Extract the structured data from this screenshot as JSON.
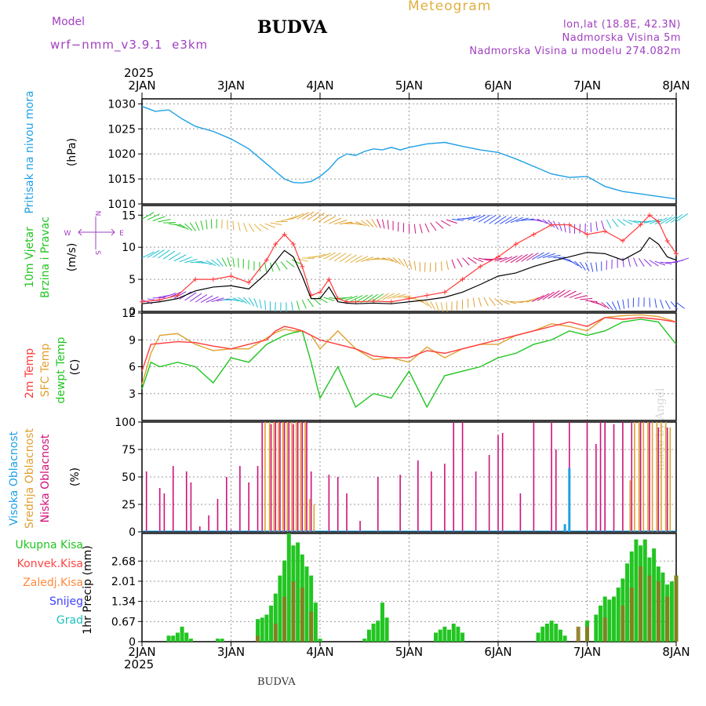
{
  "header": {
    "model_label": "Model",
    "model_name": "wrf−nmm_v3.9.1  e3km",
    "title": "BUDVA",
    "meteogram": "Meteogram",
    "lonlat": "lon,lat (18.8E, 42.3N)",
    "altitude": "Nadmorska Visina 5m",
    "model_altitude": "Nadmorska Visina u modelu 274.082m",
    "year_top": "2025",
    "year_bottom": "2025",
    "footer_station": "BUDVA",
    "watermark": "made by Angel"
  },
  "colors": {
    "pressure": "#1ea0e6",
    "wind_black": "#000000",
    "wind_gust": "#ff3b3b",
    "t2m": "#ff3b3b",
    "sfc": "#e0a030",
    "dew": "#22c522",
    "cloud_high": "#1ea0e6",
    "cloud_mid": "#e0a030",
    "cloud_low": "#d0107a",
    "precip_total": "#22c522",
    "precip_conv": "#ff4444",
    "precip_frozen": "#ff8a3c",
    "precip_snow": "#4040ff",
    "precip_graupel": "#20c0c0",
    "model_text": "#a040c0"
  },
  "chart_data": [
    {
      "type": "line",
      "id": "pressure",
      "ylabel": "(hPa)",
      "side_label": "Pritisak na nivou mora",
      "ylim": [
        1010,
        1031
      ],
      "yticks": [
        1010,
        1015,
        1020,
        1025,
        1030
      ],
      "x_days": [
        2,
        3,
        4,
        5,
        6,
        7,
        8
      ],
      "x_tick_labels": [
        "2JAN",
        "3JAN",
        "4JAN",
        "5JAN",
        "6JAN",
        "7JAN",
        "8JAN"
      ],
      "series": [
        {
          "name": "MSLP",
          "x": [
            0,
            0.15,
            0.3,
            0.45,
            0.6,
            0.8,
            1.0,
            1.2,
            1.4,
            1.5,
            1.6,
            1.7,
            1.8,
            1.9,
            2.0,
            2.1,
            2.2,
            2.3,
            2.4,
            2.5,
            2.6,
            2.7,
            2.8,
            2.9,
            3.0,
            3.2,
            3.4,
            3.6,
            3.8,
            4.0,
            4.2,
            4.4,
            4.6,
            4.8,
            5.0,
            5.2,
            5.4,
            5.6,
            5.8,
            6.0
          ],
          "values": [
            1029.5,
            1028.5,
            1028.8,
            1027.0,
            1025.5,
            1024.5,
            1023.0,
            1021.0,
            1018.0,
            1016.5,
            1015.0,
            1014.3,
            1014.2,
            1014.5,
            1015.5,
            1017.0,
            1019.0,
            1020.0,
            1019.7,
            1020.5,
            1021.0,
            1020.8,
            1021.3,
            1020.8,
            1021.3,
            1022.0,
            1022.3,
            1021.5,
            1020.8,
            1020.3,
            1019.0,
            1017.5,
            1016.0,
            1015.3,
            1015.5,
            1013.5,
            1012.5,
            1012.0,
            1011.5,
            1011.0
          ]
        }
      ]
    },
    {
      "type": "line",
      "id": "wind",
      "ylabel": "(m/s)",
      "side_label_1": "10m Vjetar",
      "side_label_2": "Brzina i Pravac",
      "ylim": [
        0,
        16.5
      ],
      "yticks": [
        0,
        5,
        10,
        15
      ],
      "compass": {
        "n": "N",
        "s": "S",
        "e": "E",
        "w": "W"
      },
      "series": [
        {
          "name": "Wind speed",
          "x": [
            0,
            0.2,
            0.4,
            0.6,
            0.8,
            1.0,
            1.2,
            1.4,
            1.5,
            1.6,
            1.7,
            1.8,
            1.9,
            2.0,
            2.1,
            2.2,
            2.3,
            2.4,
            2.6,
            2.8,
            3.0,
            3.2,
            3.4,
            3.6,
            3.8,
            4.0,
            4.2,
            4.4,
            4.6,
            4.8,
            5.0,
            5.2,
            5.4,
            5.6,
            5.7,
            5.8,
            5.9,
            6.0
          ],
          "values": [
            1.2,
            1.5,
            2.0,
            3.2,
            3.8,
            4.0,
            3.5,
            6.0,
            7.8,
            9.5,
            8.5,
            5.5,
            2.0,
            2.0,
            3.8,
            1.5,
            1.3,
            1.2,
            1.3,
            1.2,
            1.5,
            1.8,
            2.2,
            3.0,
            4.2,
            5.5,
            6.0,
            7.0,
            7.8,
            8.5,
            9.2,
            9.0,
            8.0,
            9.5,
            11.5,
            10.5,
            8.5,
            8.0
          ]
        },
        {
          "name": "Gust",
          "x": [
            0,
            0.2,
            0.4,
            0.6,
            0.8,
            1.0,
            1.2,
            1.4,
            1.5,
            1.6,
            1.7,
            1.8,
            1.9,
            2.0,
            2.1,
            2.2,
            2.3,
            2.4,
            2.6,
            2.8,
            3.0,
            3.2,
            3.4,
            3.6,
            3.8,
            4.0,
            4.2,
            4.4,
            4.6,
            4.8,
            5.0,
            5.2,
            5.4,
            5.6,
            5.7,
            5.8,
            5.9,
            6.0
          ],
          "values": [
            1.5,
            1.8,
            2.5,
            5.0,
            5.0,
            5.5,
            4.5,
            8.0,
            10.5,
            12.0,
            10.5,
            7.0,
            2.5,
            3.0,
            5.0,
            2.0,
            1.5,
            1.5,
            1.6,
            1.5,
            2.0,
            2.5,
            3.0,
            5.0,
            7.0,
            8.5,
            10.5,
            12.0,
            13.5,
            13.5,
            12.0,
            12.5,
            11.0,
            13.5,
            15.0,
            14.0,
            11.0,
            9.0
          ]
        }
      ]
    },
    {
      "type": "line",
      "id": "temperature",
      "ylabel": "(C)",
      "side_label_1": "2m Temp",
      "side_label_2": "SFC Temp",
      "side_label_3": "dewpt Temp",
      "ylim": [
        0,
        12
      ],
      "yticks": [
        3,
        6,
        9,
        12
      ],
      "series": [
        {
          "name": "2m Temp",
          "x": [
            0,
            0.1,
            0.2,
            0.4,
            0.6,
            0.8,
            1.0,
            1.2,
            1.4,
            1.5,
            1.6,
            1.7,
            1.8,
            1.9,
            2.0,
            2.2,
            2.4,
            2.6,
            2.8,
            3.0,
            3.2,
            3.4,
            3.6,
            3.8,
            4.0,
            4.2,
            4.4,
            4.6,
            4.8,
            5.0,
            5.2,
            5.4,
            5.6,
            5.8,
            6.0
          ],
          "values": [
            5.5,
            8.5,
            8.6,
            8.8,
            8.7,
            8.3,
            8.0,
            8.5,
            9.0,
            10.0,
            10.5,
            10.3,
            10.0,
            9.5,
            9.0,
            8.5,
            8.0,
            7.2,
            7.0,
            7.0,
            7.8,
            7.5,
            8.0,
            8.5,
            9.0,
            9.5,
            10.0,
            10.5,
            11.0,
            10.5,
            11.5,
            11.3,
            11.5,
            11.3,
            11.0
          ]
        },
        {
          "name": "SFC Temp",
          "x": [
            0,
            0.1,
            0.2,
            0.4,
            0.6,
            0.8,
            1.0,
            1.2,
            1.4,
            1.5,
            1.6,
            1.7,
            1.8,
            1.9,
            2.0,
            2.2,
            2.4,
            2.6,
            2.8,
            3.0,
            3.2,
            3.4,
            3.6,
            3.8,
            4.0,
            4.2,
            4.4,
            4.6,
            4.8,
            5.0,
            5.2,
            5.4,
            5.6,
            5.8,
            6.0
          ],
          "values": [
            4.0,
            7.5,
            9.5,
            9.7,
            8.5,
            7.8,
            8.0,
            8.0,
            9.2,
            9.8,
            10.2,
            10.0,
            10.0,
            9.5,
            8.0,
            10.0,
            8.0,
            6.8,
            7.0,
            6.5,
            8.2,
            7.0,
            8.0,
            8.5,
            8.5,
            9.5,
            10.0,
            10.8,
            10.5,
            10.0,
            11.5,
            11.7,
            11.8,
            11.6,
            11.0
          ]
        },
        {
          "name": "dewpt Temp",
          "x": [
            0,
            0.1,
            0.2,
            0.4,
            0.6,
            0.8,
            1.0,
            1.2,
            1.4,
            1.5,
            1.6,
            1.7,
            1.8,
            1.9,
            2.0,
            2.2,
            2.4,
            2.6,
            2.8,
            3.0,
            3.2,
            3.4,
            3.6,
            3.8,
            4.0,
            4.2,
            4.4,
            4.6,
            4.8,
            5.0,
            5.2,
            5.4,
            5.6,
            5.8,
            6.0
          ],
          "values": [
            3.5,
            6.5,
            6.0,
            6.5,
            6.0,
            4.2,
            7.0,
            6.5,
            8.5,
            9.0,
            9.5,
            9.8,
            10.0,
            6.5,
            2.5,
            6.0,
            1.5,
            3.0,
            2.5,
            5.5,
            1.5,
            5.0,
            5.5,
            6.0,
            7.0,
            7.5,
            8.5,
            9.0,
            10.0,
            9.5,
            10.0,
            11.0,
            11.3,
            11.0,
            8.5
          ]
        }
      ]
    },
    {
      "type": "bar",
      "id": "clouds",
      "ylabel": "(%)",
      "side_label_1": "Visoka Oblacnost",
      "side_label_2": "Srednja Oblacnost",
      "side_label_3": "Niska Oblacnost",
      "ylim": [
        0,
        100
      ],
      "yticks": [
        0,
        25,
        50,
        75,
        100
      ],
      "series": [
        {
          "name": "Niska",
          "x": [
            0.05,
            0.2,
            0.25,
            0.35,
            0.5,
            0.55,
            0.65,
            0.75,
            0.85,
            0.95,
            1.0,
            1.1,
            1.2,
            1.3,
            1.35,
            1.45,
            1.5,
            1.55,
            1.6,
            1.65,
            1.7,
            1.75,
            1.8,
            1.85,
            1.9,
            2.1,
            2.2,
            2.3,
            2.45,
            2.65,
            2.9,
            3.1,
            3.25,
            3.4,
            3.5,
            3.6,
            3.75,
            3.9,
            4.0,
            4.05,
            4.25,
            4.4,
            4.6,
            4.65,
            4.8,
            5.0,
            5.1,
            5.15,
            5.2,
            5.3,
            5.4,
            5.5,
            5.6,
            5.7,
            5.8,
            5.9
          ],
          "values": [
            55,
            40,
            35,
            60,
            55,
            45,
            5,
            15,
            30,
            50,
            2,
            60,
            45,
            60,
            100,
            98,
            100,
            100,
            100,
            100,
            98,
            100,
            100,
            100,
            55,
            52,
            50,
            35,
            10,
            50,
            52,
            65,
            55,
            62,
            100,
            100,
            55,
            70,
            88,
            90,
            35,
            100,
            100,
            75,
            100,
            100,
            80,
            100,
            100,
            98,
            100,
            100,
            100,
            100,
            95,
            95
          ]
        },
        {
          "name": "Srednja",
          "x": [
            1.4,
            1.45,
            1.5,
            1.55,
            1.6,
            1.65,
            1.7,
            1.75,
            1.8,
            1.85,
            1.9,
            1.95,
            5.5,
            5.55,
            5.6,
            5.65,
            5.7,
            5.75,
            5.8,
            5.85,
            5.9,
            5.95
          ],
          "values": [
            100,
            100,
            100,
            100,
            100,
            100,
            100,
            100,
            100,
            100,
            30,
            25,
            47,
            100,
            100,
            100,
            100,
            100,
            100,
            100,
            100,
            95
          ]
        },
        {
          "name": "Visoka",
          "x": [
            4.75,
            4.8
          ],
          "values": [
            7,
            58
          ]
        }
      ]
    },
    {
      "type": "bar",
      "id": "precip",
      "ylabel": "1hr Precip (mm)",
      "ylim": [
        0,
        3.6
      ],
      "yticks": [
        0,
        0.67,
        1.34,
        2.01,
        2.68
      ],
      "legend": [
        "Ukupna Kisa",
        "Konvek.Kisa",
        "Zaledj.Kisa",
        "Snijeg",
        "Grad"
      ],
      "series": [
        {
          "name": "Ukupna",
          "x": [
            0.3,
            0.35,
            0.4,
            0.45,
            0.5,
            0.55,
            0.85,
            0.9,
            1.3,
            1.35,
            1.4,
            1.45,
            1.5,
            1.55,
            1.6,
            1.65,
            1.7,
            1.75,
            1.8,
            1.85,
            1.9,
            1.95,
            2.0,
            2.5,
            2.55,
            2.6,
            2.65,
            2.7,
            2.75,
            3.3,
            3.35,
            3.4,
            3.45,
            3.5,
            3.55,
            3.6,
            4.45,
            4.5,
            4.55,
            4.6,
            4.65,
            4.7,
            4.75,
            5.0,
            5.1,
            5.15,
            5.2,
            5.25,
            5.3,
            5.35,
            5.4,
            5.45,
            5.5,
            5.55,
            5.6,
            5.65,
            5.7,
            5.75,
            5.8,
            5.85,
            5.9,
            5.95,
            6.0
          ],
          "values": [
            0.2,
            0.2,
            0.3,
            0.5,
            0.3,
            0.1,
            0.1,
            0.1,
            0.75,
            0.8,
            0.9,
            1.2,
            1.6,
            2.2,
            2.7,
            3.6,
            3.2,
            3.3,
            2.9,
            2.5,
            2.2,
            1.3,
            0.1,
            0.1,
            0.4,
            0.6,
            0.7,
            1.3,
            0.8,
            0.3,
            0.4,
            0.5,
            0.4,
            0.6,
            0.5,
            0.3,
            0.3,
            0.5,
            0.6,
            0.7,
            0.6,
            0.4,
            0.2,
            0.7,
            0.9,
            1.2,
            1.5,
            1.4,
            1.5,
            1.8,
            2.1,
            2.6,
            3.0,
            3.4,
            3.2,
            3.4,
            2.8,
            3.1,
            2.5,
            2.3,
            1.9,
            2.0,
            2.2
          ]
        },
        {
          "name": "Konvek",
          "x": [
            1.3,
            1.5,
            1.6,
            1.7,
            1.8,
            1.9,
            4.9,
            5.0,
            5.2,
            5.4,
            5.5,
            5.6,
            5.7,
            5.8,
            5.9,
            6.0
          ],
          "values": [
            0.2,
            0.6,
            1.5,
            2.0,
            1.8,
            1.0,
            0.5,
            0.5,
            0.8,
            1.2,
            1.8,
            2.5,
            2.2,
            2.0,
            1.5,
            2.2
          ]
        }
      ]
    }
  ]
}
